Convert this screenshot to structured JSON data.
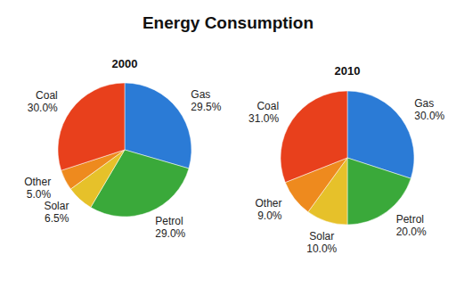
{
  "title": "Energy Consumption",
  "chart_data": [
    {
      "type": "pie",
      "title": "2000",
      "categories": [
        "Gas",
        "Petrol",
        "Solar",
        "Other",
        "Coal"
      ],
      "values": [
        29.5,
        29.0,
        6.5,
        5.0,
        30.0
      ],
      "value_labels": [
        "29.5%",
        "29.0%",
        "6.5%",
        "5.0%",
        "30.0%"
      ],
      "colors": [
        "#2b7bd6",
        "#3aa93a",
        "#e6c12a",
        "#ee8a1e",
        "#e8401c"
      ],
      "data_labels": true
    },
    {
      "type": "pie",
      "title": "2010",
      "categories": [
        "Gas",
        "Petrol",
        "Solar",
        "Other",
        "Coal"
      ],
      "values": [
        30.0,
        20.0,
        10.0,
        9.0,
        31.0
      ],
      "value_labels": [
        "30.0%",
        "20.0%",
        "10.0%",
        "9.0%",
        "31.0%"
      ],
      "colors": [
        "#2b7bd6",
        "#3aa93a",
        "#e6c12a",
        "#ee8a1e",
        "#e8401c"
      ],
      "data_labels": true
    }
  ]
}
